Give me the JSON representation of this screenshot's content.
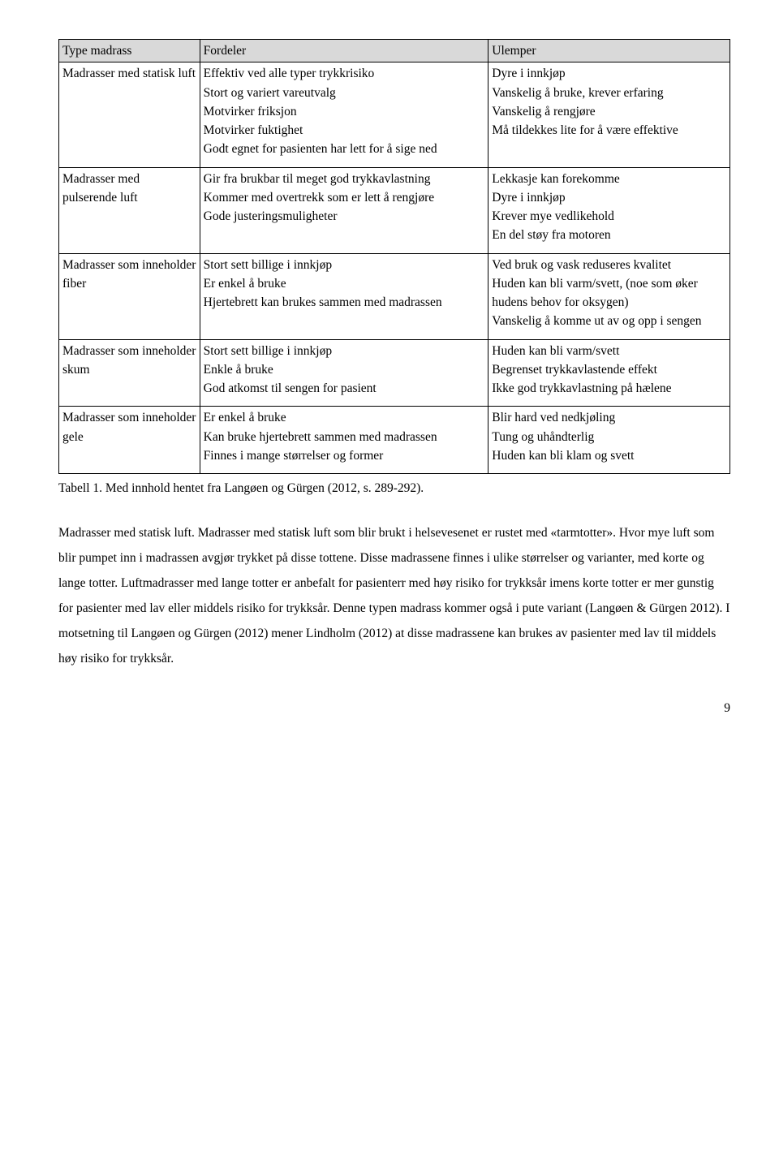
{
  "table": {
    "headers": [
      "Type madrass",
      "Fordeler",
      "Ulemper"
    ],
    "rows": [
      {
        "type": "Madrasser med statisk luft",
        "fordeler": " Effektiv ved alle typer trykkrisiko\n Stort og variert vareutvalg\n Motvirker friksjon\n Motvirker fuktighet\n Godt egnet for pasienten har lett for å sige ned",
        "ulemper": " Dyre i innkjøp\n Vanskelig å bruke, krever erfaring\n Vanskelig å rengjøre\n Må tildekkes lite for å være effektive"
      },
      {
        "type": "Madrasser med pulserende luft",
        "fordeler": " Gir fra brukbar til meget god trykkavlastning\n Kommer med overtrekk som er lett å rengjøre\n Gode justeringsmuligheter",
        "ulemper": " Lekkasje kan forekomme\n Dyre i innkjøp\n Krever mye vedlikehold\n En del støy fra motoren"
      },
      {
        "type": "Madrasser som inneholder fiber",
        "fordeler": " Stort sett billige i innkjøp\n Er enkel å bruke\n Hjertebrett kan brukes sammen med madrassen",
        "ulemper": " Ved bruk og vask reduseres kvalitet\n Huden kan bli varm/svett, (noe som øker hudens behov for oksygen)\n Vanskelig å komme ut av og opp i sengen"
      },
      {
        "type": "Madrasser som inneholder skum",
        "fordeler": " Stort sett billige i innkjøp\n Enkle å bruke\n God atkomst til sengen for pasient",
        "ulemper": " Huden kan bli varm/svett\n Begrenset trykkavlastende effekt\n Ikke god trykkavlastning på hælene"
      },
      {
        "type": "Madrasser som inneholder gele",
        "fordeler": " Er enkel å bruke\n Kan bruke hjertebrett sammen med madrassen\n Finnes i mange størrelser og former",
        "ulemper": " Blir hard ved nedkjøling\n Tung og uhåndterlig\n Huden kan bli klam og svett"
      }
    ]
  },
  "caption": "Tabell 1. Med innhold hentet fra Langøen og Gürgen (2012, s. 289-292).",
  "paragraph": "Madrasser med statisk luft. Madrasser med statisk luft som blir brukt i helsevesenet er rustet med «tarmtotter». Hvor mye luft som blir pumpet inn i madrassen avgjør trykket på disse tottene. Disse madrassene finnes i ulike størrelser og varianter, med korte og lange totter. Luftmadrasser med lange totter er anbefalt for pasienterr med høy risiko for trykksår imens korte totter er mer gunstig for pasienter med lav eller middels risiko for trykksår. Denne typen madrass kommer også i pute variant (Langøen & Gürgen 2012). I motsetning til Langøen og Gürgen (2012) mener Lindholm (2012) at disse madrassene kan brukes av pasienter med lav til middels høy risiko for trykksår.",
  "pagenum": "9"
}
